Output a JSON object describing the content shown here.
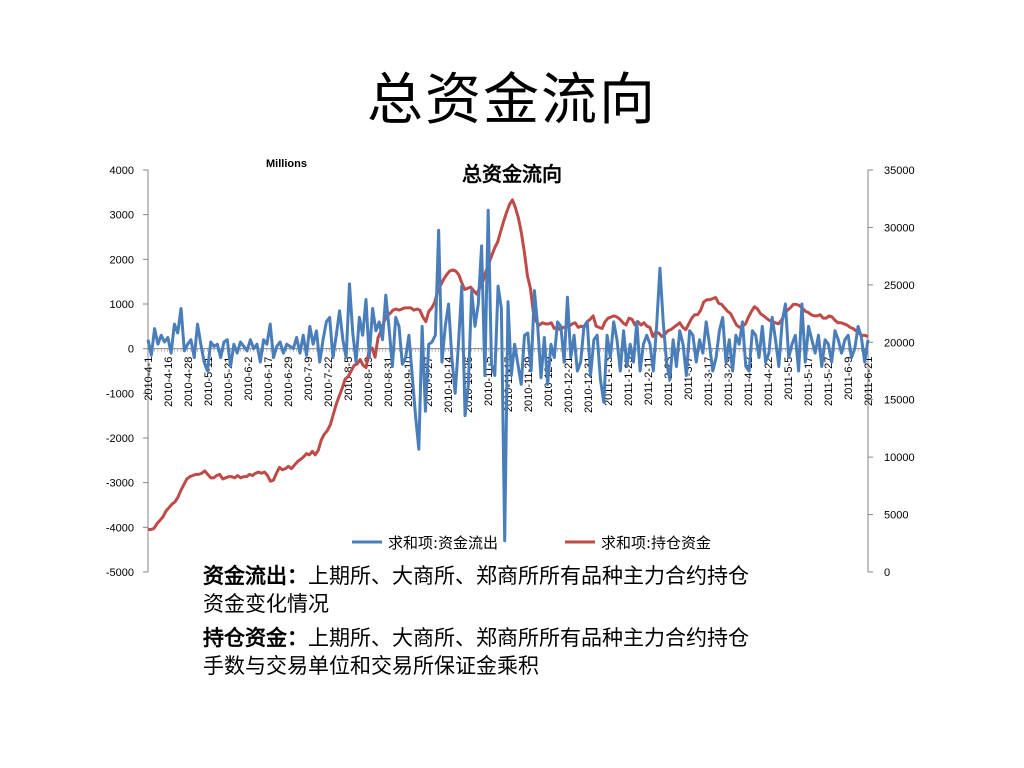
{
  "slide": {
    "title": "总资金流向"
  },
  "descriptions": [
    {
      "term": "资金流出：",
      "text": "上期所、大商所、郑商所所有品种主力合约持仓资金变化情况"
    },
    {
      "term": "持仓资金：",
      "text": "上期所、大商所、郑商所所有品种主力合约持仓手数与交易单位和交易所保证金乘积"
    }
  ],
  "chart_data": {
    "type": "line",
    "title": "总资金流向",
    "unit_label": "Millions",
    "left_axis": {
      "min": -5000,
      "max": 4000,
      "ticks": [
        "4000",
        "3000",
        "2000",
        "1000",
        "0",
        "-1000",
        "-2000",
        "-3000",
        "-4000",
        "-5000"
      ]
    },
    "right_axis": {
      "min": 0,
      "max": 35000,
      "ticks": [
        "35000",
        "30000",
        "25000",
        "20000",
        "15000",
        "10000",
        "5000",
        "0"
      ]
    },
    "x_tick_labels": [
      "2010-4-1",
      "2010-4-16",
      "2010-4-28",
      "2010-5-11",
      "2010-5-21",
      "2010-6-2",
      "2010-6-17",
      "2010-6-29",
      "2010-7-9",
      "2010-7-22",
      "2010-8-5",
      "2010-8-19",
      "2010-8-31",
      "2010-9-10",
      "2010-9-27",
      "2010-10-14",
      "2010-10-26",
      "2010-11-5",
      "2010-11-17",
      "2010-11-29",
      "2010-12-9",
      "2010-12-21",
      "2010-12-31",
      "2011-1-13",
      "2011-1-25",
      "2011-2-11",
      "2011-2-23",
      "2011-3-7",
      "2011-3-17",
      "2011-3-29",
      "2011-4-12",
      "2011-4-22",
      "2011-5-5",
      "2011-5-17",
      "2011-5-27",
      "2011-6-9",
      "2011-6-21"
    ],
    "series": [
      {
        "name": "求和项:资金流出",
        "axis": "left",
        "color": "#4a7ebb",
        "values": [
          200,
          -150,
          450,
          100,
          300,
          150,
          250,
          -100,
          550,
          350,
          900,
          -50,
          100,
          200,
          -200,
          550,
          100,
          -300,
          -500,
          150,
          50,
          100,
          -200,
          150,
          200,
          -400,
          100,
          -100,
          150,
          50,
          -50,
          200,
          0,
          100,
          -300,
          200,
          100,
          550,
          -200,
          50,
          150,
          -100,
          100,
          50,
          0,
          250,
          -100,
          300,
          -150,
          500,
          100,
          400,
          -300,
          200,
          600,
          700,
          -200,
          300,
          850,
          200,
          -200,
          1450,
          350,
          -300,
          700,
          300,
          1100,
          -200,
          900,
          400,
          600,
          200,
          1200,
          450,
          -400,
          700,
          500,
          -350,
          -200,
          300,
          -600,
          -1500,
          -2250,
          500,
          -1400,
          100,
          150,
          300,
          2650,
          -300,
          500,
          1000,
          -200,
          -1000,
          100,
          1400,
          -1500,
          -800,
          1300,
          500,
          1000,
          2300,
          -600,
          3100,
          -350,
          -600,
          1400,
          900,
          -4300,
          1050,
          -600,
          100,
          -350,
          -800,
          300,
          350,
          -500,
          1300,
          500,
          -650,
          250,
          -800,
          100,
          -200,
          600,
          500,
          -300,
          1150,
          -200,
          300,
          -500,
          -300,
          500,
          600,
          -600,
          200,
          300,
          -700,
          -1200,
          300,
          -200,
          600,
          200,
          -500,
          400,
          -400,
          100,
          -300,
          600,
          -500,
          100,
          300,
          100,
          -500,
          500,
          1800,
          600,
          -300,
          -700,
          200,
          -400,
          400,
          100,
          -600,
          400,
          300,
          -300,
          200,
          -100,
          600,
          100,
          -500,
          -200,
          400,
          700,
          -300,
          200,
          -500,
          300,
          100,
          600,
          -400,
          -500,
          400,
          300,
          -200,
          500,
          -300,
          -100,
          700,
          200,
          -400,
          600,
          1000,
          -200,
          100,
          300,
          -500,
          1000,
          -300,
          500,
          200,
          -100,
          300,
          -400,
          200,
          100,
          -300,
          400,
          200,
          -100,
          200,
          300,
          -200,
          0,
          500,
          250,
          -300,
          200
        ]
      },
      {
        "name": "求和项:持仓资金",
        "axis": "right",
        "color": "#be4b48",
        "values": [
          3700,
          3700,
          3800,
          4200,
          4500,
          4800,
          5300,
          5600,
          5900,
          6100,
          6500,
          7100,
          7600,
          8100,
          8300,
          8400,
          8500,
          8500,
          8600,
          8800,
          8500,
          8200,
          8200,
          8400,
          8500,
          8100,
          8200,
          8300,
          8300,
          8200,
          8400,
          8200,
          8300,
          8300,
          8500,
          8400,
          8600,
          8700,
          8600,
          8700,
          8400,
          7900,
          8000,
          8600,
          9100,
          8900,
          9000,
          9200,
          9000,
          9300,
          9600,
          9800,
          10000,
          10300,
          10200,
          10500,
          10200,
          10600,
          11500,
          12000,
          12300,
          12800,
          13700,
          14600,
          15300,
          16000,
          16800,
          17000,
          17500,
          18000,
          18100,
          18500,
          18000,
          17800,
          19300,
          19500,
          18700,
          20400,
          21000,
          21800,
          22300,
          22500,
          22800,
          22900,
          22800,
          22900,
          23000,
          23000,
          23000,
          22800,
          22900,
          22800,
          22200,
          21800,
          22700,
          23000,
          23500,
          24500,
          25000,
          25500,
          25900,
          26200,
          26300,
          26200,
          25900,
          25200,
          24600,
          24700,
          24800,
          24500,
          24200,
          24700,
          25200,
          26100,
          26800,
          27500,
          28200,
          28700,
          29600,
          30500,
          31300,
          32000,
          32400,
          31700,
          30800,
          29500,
          27800,
          25800,
          24700,
          22600,
          21800,
          21500,
          21700,
          21600,
          21600,
          21700,
          21200,
          21300,
          21100,
          21300,
          21300,
          21400,
          21600,
          21700,
          21300,
          21400,
          21300,
          21800,
          22000,
          22300,
          21400,
          21300,
          21200,
          21800,
          22100,
          22200,
          22300,
          22200,
          22000,
          21700,
          21500,
          22100,
          22000,
          21500,
          21800,
          21500,
          21700,
          21400,
          21300,
          20500,
          20900,
          20800,
          20500,
          20700,
          21000,
          21100,
          21300,
          21500,
          21700,
          21300,
          21100,
          21600,
          22100,
          22400,
          22400,
          22800,
          23500,
          23700,
          23700,
          23800,
          23900,
          23400,
          23300,
          23000,
          22700,
          22500,
          22000,
          21500,
          21300,
          21400,
          21600,
          22200,
          22700,
          23100,
          22900,
          22500,
          22300,
          22100,
          21900,
          21800,
          21700,
          21600,
          21900,
          22400,
          22800,
          23000,
          23300,
          23300,
          23200,
          23000,
          22700,
          22600,
          22400,
          22300,
          22300,
          22400,
          22100,
          22100,
          22300,
          22200,
          21900,
          21700,
          21700,
          21600,
          21500,
          21300,
          21200,
          21000,
          20800,
          20600,
          20600,
          20500
        ]
      }
    ]
  }
}
